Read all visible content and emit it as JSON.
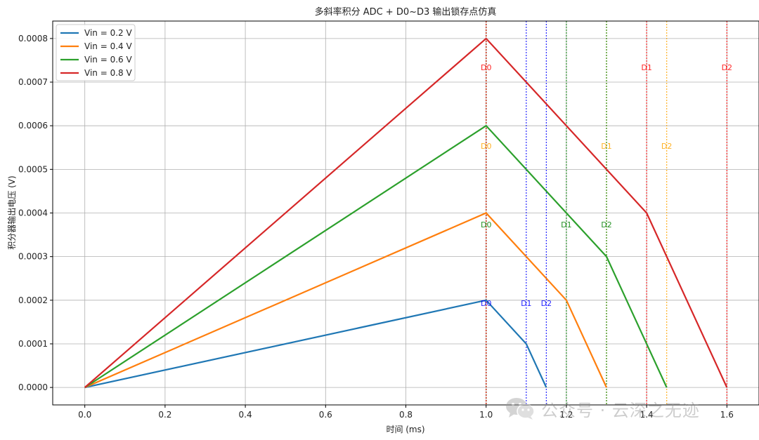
{
  "chart_data": {
    "type": "line",
    "title": "多斜率积分 ADC + D0~D3 输出锁存点仿真",
    "xlabel": "时间 (ms)",
    "ylabel": "积分器输出电压 (V)",
    "xlim": [
      -0.08,
      1.68
    ],
    "ylim": [
      -4e-05,
      0.00084
    ],
    "xticks": [
      0.0,
      0.2,
      0.4,
      0.6,
      0.8,
      1.0,
      1.2,
      1.4,
      1.6
    ],
    "yticks": [
      0.0,
      0.0001,
      0.0002,
      0.0003,
      0.0004,
      0.0005,
      0.0006,
      0.0007,
      0.0008
    ],
    "xtick_labels": [
      "0.0",
      "0.2",
      "0.4",
      "0.6",
      "0.8",
      "1.0",
      "1.2",
      "1.4",
      "1.6"
    ],
    "ytick_labels": [
      "0.0000",
      "0.0001",
      "0.0002",
      "0.0003",
      "0.0004",
      "0.0005",
      "0.0006",
      "0.0007",
      "0.0008"
    ],
    "grid": true,
    "legend_position": "top-left",
    "series": [
      {
        "name": "Vin = 0.2 V",
        "color": "#1f77b4",
        "x": [
          0.0,
          1.0,
          1.1,
          1.15
        ],
        "y": [
          0.0,
          0.0002,
          0.0001,
          0.0
        ]
      },
      {
        "name": "Vin = 0.4 V",
        "color": "#ff7f0e",
        "x": [
          0.0,
          1.0,
          1.2,
          1.3
        ],
        "y": [
          0.0,
          0.0004,
          0.0002,
          0.0
        ]
      },
      {
        "name": "Vin = 0.6 V",
        "color": "#2ca02c",
        "x": [
          0.0,
          1.0,
          1.2,
          1.3,
          1.45
        ],
        "y": [
          0.0,
          0.0006,
          0.0004,
          0.0003,
          0.0
        ]
      },
      {
        "name": "Vin = 0.8 V",
        "color": "#d62728",
        "x": [
          0.0,
          1.0,
          1.4,
          1.6
        ],
        "y": [
          0.0,
          0.0008,
          0.0004,
          0.0
        ]
      }
    ],
    "latch_markers": [
      {
        "series": 0,
        "color": "#0000ff",
        "labels": [
          "D0",
          "D1",
          "D2"
        ],
        "x": [
          1.0,
          1.1,
          1.15
        ],
        "label_y": 0.000187
      },
      {
        "series": 1,
        "color": "#ffa500",
        "labels": [
          "D0",
          "D1",
          "D2"
        ],
        "x": [
          1.0,
          1.3,
          1.45
        ],
        "label_y": 0.000547
      },
      {
        "series": 2,
        "color": "#008000",
        "labels": [
          "D0",
          "D1",
          "D2"
        ],
        "x": [
          1.0,
          1.2,
          1.3
        ],
        "label_y": 0.000367
      },
      {
        "series": 3,
        "color": "#ff0000",
        "labels": [
          "D0",
          "D1",
          "D2"
        ],
        "x": [
          1.0,
          1.4,
          1.6
        ],
        "label_y": 0.000727
      }
    ]
  },
  "watermark": {
    "icon": "wechat-icon",
    "text": "公众号 · 云深之无迹"
  }
}
